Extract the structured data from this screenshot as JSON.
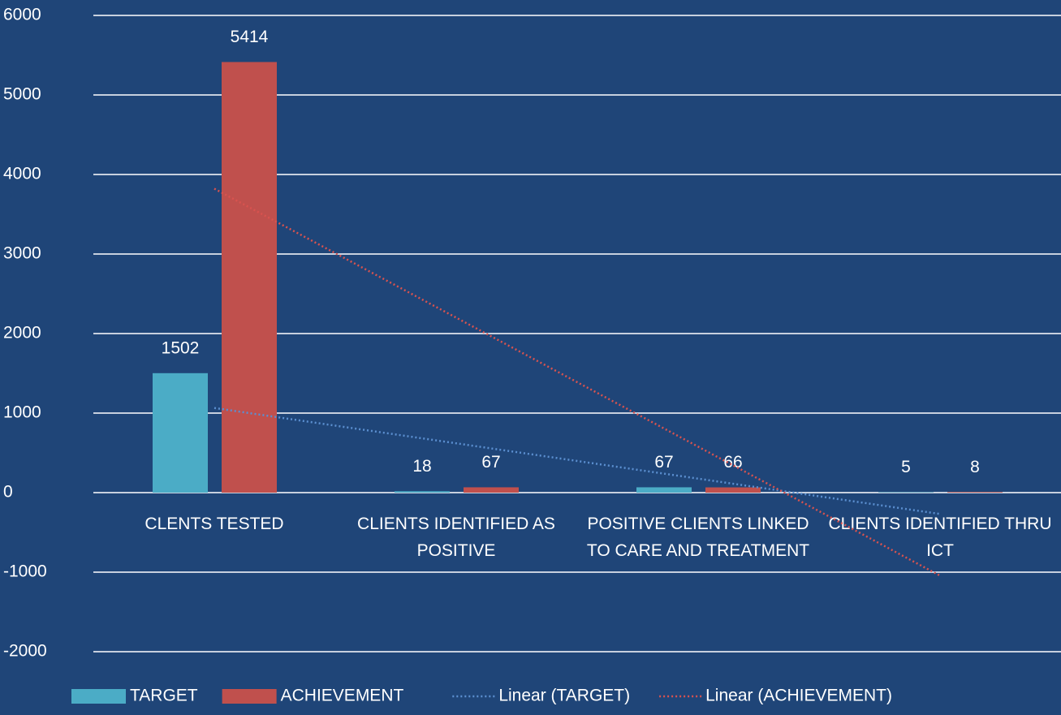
{
  "chart_data": {
    "type": "bar",
    "categories": [
      "CLENTS TESTED",
      "CLIENTS IDENTIFIED AS POSITIVE",
      "POSITIVE CLIENTS LINKED TO CARE AND TREATMENT",
      "CLIENTS IDENTIFIED THRU ICT"
    ],
    "series": [
      {
        "name": "TARGET",
        "color": "#4bacc6",
        "values": [
          1502,
          18,
          67,
          5
        ],
        "trendline": "Linear (TARGET)",
        "trendline_color": "#5b8fd0"
      },
      {
        "name": "ACHIEVEMENT",
        "color": "#c0504d",
        "values": [
          5414,
          67,
          66,
          8
        ],
        "trendline": "Linear (ACHIEVEMENT)",
        "trendline_color": "#d9534f"
      }
    ],
    "ylim": [
      -2000,
      6000
    ],
    "yticks": [
      -2000,
      -1000,
      0,
      1000,
      2000,
      3000,
      4000,
      5000,
      6000
    ],
    "grid": true,
    "legend": "bottom"
  }
}
